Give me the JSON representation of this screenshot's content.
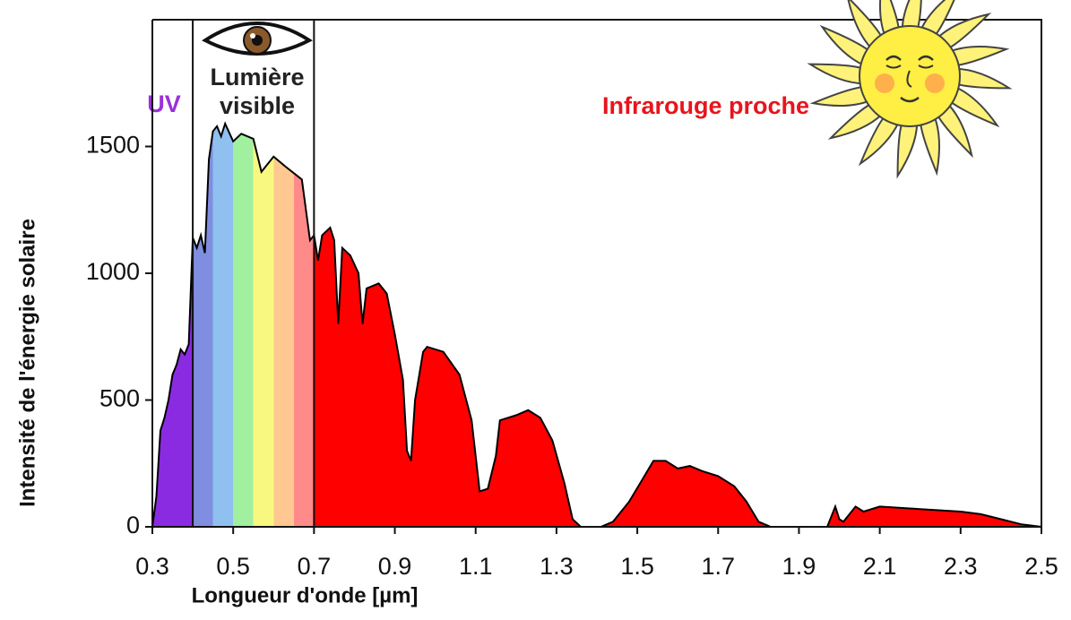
{
  "chart_data": {
    "type": "area",
    "xlabel": "Longueur d'onde [µm]",
    "ylabel": "Intensité de l'énergie solaire",
    "x": [
      0.3,
      0.31,
      0.32,
      0.33,
      0.34,
      0.35,
      0.36,
      0.37,
      0.38,
      0.39,
      0.4,
      0.41,
      0.42,
      0.43,
      0.44,
      0.45,
      0.46,
      0.47,
      0.48,
      0.5,
      0.52,
      0.55,
      0.57,
      0.6,
      0.63,
      0.67,
      0.69,
      0.7,
      0.71,
      0.72,
      0.74,
      0.75,
      0.76,
      0.77,
      0.79,
      0.81,
      0.82,
      0.83,
      0.86,
      0.88,
      0.9,
      0.92,
      0.93,
      0.94,
      0.95,
      0.97,
      0.98,
      1.02,
      1.06,
      1.09,
      1.11,
      1.13,
      1.15,
      1.16,
      1.18,
      1.2,
      1.23,
      1.26,
      1.29,
      1.32,
      1.34,
      1.36,
      1.41,
      1.44,
      1.48,
      1.51,
      1.54,
      1.57,
      1.6,
      1.63,
      1.66,
      1.7,
      1.74,
      1.77,
      1.8,
      1.83,
      1.97,
      1.99,
      2.0,
      2.01,
      2.04,
      2.06,
      2.1,
      2.2,
      2.3,
      2.35,
      2.4,
      2.45,
      2.5
    ],
    "values": [
      0,
      120,
      380,
      430,
      500,
      600,
      640,
      700,
      680,
      720,
      1140,
      1100,
      1150,
      1080,
      1450,
      1560,
      1580,
      1540,
      1590,
      1520,
      1550,
      1530,
      1400,
      1460,
      1420,
      1370,
      1130,
      1150,
      1050,
      1150,
      1180,
      1130,
      800,
      1100,
      1070,
      1000,
      800,
      940,
      960,
      920,
      760,
      580,
      300,
      260,
      500,
      690,
      710,
      690,
      600,
      420,
      140,
      150,
      280,
      420,
      430,
      440,
      460,
      430,
      340,
      170,
      30,
      0,
      0,
      20,
      100,
      180,
      260,
      260,
      230,
      240,
      220,
      200,
      160,
      100,
      20,
      0,
      0,
      80,
      30,
      20,
      80,
      60,
      80,
      70,
      60,
      50,
      30,
      10,
      0
    ],
    "line_color": "#000000",
    "xlim": [
      0.3,
      2.5
    ],
    "xticks": [
      0.3,
      0.5,
      0.7,
      0.9,
      1.1,
      1.3,
      1.5,
      1.7,
      1.9,
      2.1,
      2.3,
      2.5
    ],
    "ylim": [
      0,
      2000
    ],
    "yticks": [
      0,
      500,
      1000,
      1500
    ],
    "grid": false,
    "regions": [
      {
        "label": "UV",
        "label_color": "#9b30d9",
        "from": 0.3,
        "to": 0.4,
        "colors": [
          "#8a2be2"
        ]
      },
      {
        "label": [
          "Lumière",
          "visible"
        ],
        "label_color": "#222222",
        "from": 0.4,
        "to": 0.7,
        "colors": [
          "#7f8ee0",
          "#8fc0f0",
          "#a0f0a0",
          "#f8f880",
          "#ffc890",
          "#ff8a8a"
        ]
      },
      {
        "label": "Infrarouge proche",
        "label_color": "#e8141c",
        "from": 0.7,
        "to": 2.5,
        "colors": [
          "#ff0000"
        ]
      }
    ]
  }
}
